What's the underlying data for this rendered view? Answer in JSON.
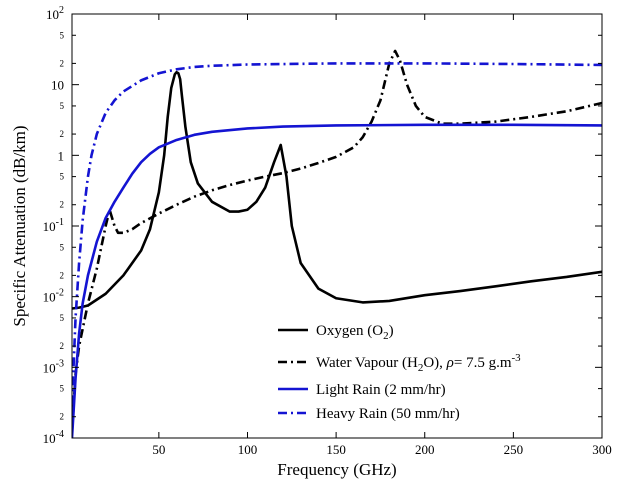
{
  "chart_data": {
    "type": "line",
    "xlabel": "Frequency (GHz)",
    "ylabel": "Specific Attenuation (dB/km)",
    "xlim": [
      1,
      300
    ],
    "ylim": [
      0.0001,
      100
    ],
    "yscale": "log",
    "grid": false,
    "legend_position": "bottom-right",
    "x_ticks": [
      {
        "value": 50,
        "label": "50"
      },
      {
        "value": 100,
        "label": "100"
      },
      {
        "value": 150,
        "label": "150"
      },
      {
        "value": 200,
        "label": "200"
      },
      {
        "value": 250,
        "label": "250"
      },
      {
        "value": 300,
        "label": "300"
      }
    ],
    "y_major_ticks": [
      {
        "value": 100,
        "base": "10",
        "exp": "2"
      },
      {
        "value": 10,
        "base": "10",
        "exp": ""
      },
      {
        "value": 1,
        "base": "1",
        "exp": ""
      },
      {
        "value": 0.1,
        "base": "10",
        "exp": "-1"
      },
      {
        "value": 0.01,
        "base": "10",
        "exp": "-2"
      },
      {
        "value": 0.001,
        "base": "10",
        "exp": "-3"
      },
      {
        "value": 0.0001,
        "base": "10",
        "exp": "-4"
      }
    ],
    "y_minor_ticks": [
      {
        "value": 50,
        "label": "5"
      },
      {
        "value": 20,
        "label": "2"
      },
      {
        "value": 5,
        "label": "5"
      },
      {
        "value": 2,
        "label": "2"
      },
      {
        "value": 0.5,
        "label": "5"
      },
      {
        "value": 0.2,
        "label": "2"
      },
      {
        "value": 0.05,
        "label": "5"
      },
      {
        "value": 0.02,
        "label": "2"
      },
      {
        "value": 0.005,
        "label": "5"
      },
      {
        "value": 0.002,
        "label": "2"
      },
      {
        "value": 0.0005,
        "label": "5"
      },
      {
        "value": 0.0002,
        "label": "2"
      }
    ],
    "series": [
      {
        "legend": {
          "text": "Oxygen (O",
          "sub": "2",
          "tail": ")"
        },
        "color": "#000000",
        "dash": "solid",
        "points": [
          [
            1,
            0.0068
          ],
          [
            5,
            0.007
          ],
          [
            10,
            0.0075
          ],
          [
            20,
            0.011
          ],
          [
            30,
            0.02
          ],
          [
            40,
            0.045
          ],
          [
            45,
            0.09
          ],
          [
            50,
            0.3
          ],
          [
            53,
            1.0
          ],
          [
            55,
            3.5
          ],
          [
            57,
            9
          ],
          [
            59,
            14
          ],
          [
            60,
            15
          ],
          [
            61,
            14.5
          ],
          [
            62,
            12
          ],
          [
            63,
            7
          ],
          [
            65,
            2.5
          ],
          [
            68,
            0.8
          ],
          [
            72,
            0.4
          ],
          [
            80,
            0.22
          ],
          [
            90,
            0.16
          ],
          [
            95,
            0.16
          ],
          [
            100,
            0.17
          ],
          [
            105,
            0.22
          ],
          [
            110,
            0.35
          ],
          [
            115,
            0.8
          ],
          [
            118.75,
            1.4
          ],
          [
            122,
            0.5
          ],
          [
            125,
            0.1
          ],
          [
            130,
            0.03
          ],
          [
            140,
            0.013
          ],
          [
            150,
            0.0095
          ],
          [
            165,
            0.0083
          ],
          [
            180,
            0.0087
          ],
          [
            200,
            0.0105
          ],
          [
            220,
            0.012
          ],
          [
            240,
            0.014
          ],
          [
            260,
            0.0165
          ],
          [
            280,
            0.019
          ],
          [
            300,
            0.0225
          ]
        ]
      },
      {
        "legend": {
          "text": "Water Vapour (H",
          "sub": "2",
          "tail": "O), ",
          "rho": "ρ",
          "after": "= 7.5 g.m",
          "sup": "-3"
        },
        "color": "#000000",
        "dash": "dashdot",
        "points": [
          [
            1,
            0.00012
          ],
          [
            3,
            0.0008
          ],
          [
            5,
            0.002
          ],
          [
            10,
            0.008
          ],
          [
            15,
            0.025
          ],
          [
            20,
            0.1
          ],
          [
            22.2,
            0.17
          ],
          [
            25,
            0.1
          ],
          [
            27,
            0.08
          ],
          [
            30,
            0.08
          ],
          [
            35,
            0.09
          ],
          [
            40,
            0.11
          ],
          [
            50,
            0.15
          ],
          [
            60,
            0.2
          ],
          [
            70,
            0.26
          ],
          [
            80,
            0.32
          ],
          [
            90,
            0.38
          ],
          [
            100,
            0.44
          ],
          [
            110,
            0.5
          ],
          [
            120,
            0.56
          ],
          [
            130,
            0.65
          ],
          [
            140,
            0.78
          ],
          [
            150,
            0.95
          ],
          [
            160,
            1.3
          ],
          [
            165,
            1.8
          ],
          [
            170,
            3
          ],
          [
            175,
            6
          ],
          [
            180,
            20
          ],
          [
            183.3,
            30
          ],
          [
            186,
            22
          ],
          [
            190,
            10
          ],
          [
            195,
            5
          ],
          [
            200,
            3.5
          ],
          [
            210,
            2.8
          ],
          [
            220,
            2.8
          ],
          [
            240,
            3.0
          ],
          [
            260,
            3.5
          ],
          [
            280,
            4.2
          ],
          [
            300,
            5.5
          ]
        ]
      },
      {
        "legend": {
          "text": "Light Rain (2 mm/hr)"
        },
        "color": "#1414d2",
        "dash": "solid",
        "points": [
          [
            1,
            0.0001
          ],
          [
            3,
            0.0007
          ],
          [
            5,
            0.003
          ],
          [
            7,
            0.008
          ],
          [
            10,
            0.02
          ],
          [
            15,
            0.06
          ],
          [
            20,
            0.13
          ],
          [
            25,
            0.22
          ],
          [
            30,
            0.35
          ],
          [
            35,
            0.55
          ],
          [
            40,
            0.8
          ],
          [
            45,
            1.05
          ],
          [
            50,
            1.3
          ],
          [
            60,
            1.65
          ],
          [
            70,
            1.95
          ],
          [
            80,
            2.15
          ],
          [
            100,
            2.4
          ],
          [
            120,
            2.55
          ],
          [
            150,
            2.65
          ],
          [
            200,
            2.7
          ],
          [
            250,
            2.7
          ],
          [
            300,
            2.65
          ]
        ]
      },
      {
        "legend": {
          "text": "Heavy Rain (50 mm/hr)"
        },
        "color": "#1414d2",
        "dash": "dashdot",
        "points": [
          [
            1,
            0.0003
          ],
          [
            3,
            0.005
          ],
          [
            5,
            0.03
          ],
          [
            7,
            0.12
          ],
          [
            10,
            0.5
          ],
          [
            12,
            1.0
          ],
          [
            15,
            2.0
          ],
          [
            20,
            4.0
          ],
          [
            25,
            6.0
          ],
          [
            30,
            8.0
          ],
          [
            40,
            11.5
          ],
          [
            50,
            14.5
          ],
          [
            60,
            16.5
          ],
          [
            70,
            17.8
          ],
          [
            80,
            18.5
          ],
          [
            100,
            19.3
          ],
          [
            150,
            20
          ],
          [
            200,
            20
          ],
          [
            250,
            19.6
          ],
          [
            300,
            19
          ]
        ]
      }
    ]
  }
}
